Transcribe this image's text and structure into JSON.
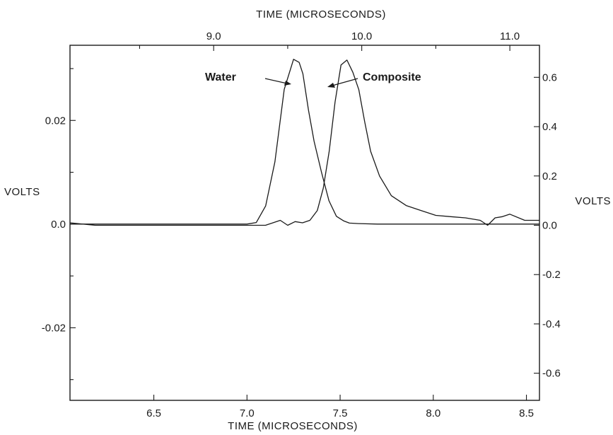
{
  "chart_data": {
    "type": "line",
    "top_xlabel": "TIME (MICROSECONDS)",
    "bottom_xlabel": "TIME (MICROSECONDS)",
    "left_ylabel": "VOLTS",
    "right_ylabel": "VOLTS",
    "bottom_x_axis": {
      "range": [
        6.05,
        8.57
      ],
      "ticks": [
        6.5,
        7.0,
        7.5,
        8.0,
        8.5
      ],
      "tick_labels": [
        "6.5",
        "7.0",
        "7.5",
        "8.0",
        "8.5"
      ]
    },
    "top_x_axis": {
      "range": [
        8.03,
        11.2
      ],
      "ticks": [
        9.0,
        10.0,
        11.0
      ],
      "tick_labels": [
        "9.0",
        "10.0",
        "11.0"
      ],
      "minor_ticks": [
        8.5,
        9.5,
        10.5
      ]
    },
    "left_y_axis": {
      "range": [
        -0.034,
        0.0345
      ],
      "ticks": [
        0.02,
        0.0,
        -0.02
      ],
      "tick_labels": [
        "0.02",
        "0.0",
        "-0.02"
      ],
      "minor_ticks": [
        0.03,
        0.01,
        -0.01,
        -0.03
      ]
    },
    "right_y_axis": {
      "range": [
        -0.71,
        0.73
      ],
      "ticks": [
        0.6,
        0.4,
        0.2,
        0.0,
        -0.2,
        -0.4,
        -0.6
      ],
      "tick_labels": [
        "0.6",
        "0.4",
        "0.2",
        "0.0",
        "-0.2",
        "-0.4",
        "-0.6"
      ]
    },
    "grid": false,
    "series": [
      {
        "name": "Water",
        "axis": "bottom-left",
        "x": [
          6.05,
          6.1,
          6.2,
          6.3,
          6.4,
          6.5,
          6.6,
          6.7,
          6.8,
          6.85,
          6.9,
          6.95,
          7.0,
          7.05,
          7.1,
          7.15,
          7.2,
          7.25,
          7.28,
          7.3,
          7.33,
          7.36,
          7.4,
          7.44,
          7.48,
          7.52,
          7.55,
          7.6,
          7.7,
          7.8,
          7.9,
          8.0,
          8.1,
          8.2,
          8.3,
          8.4,
          8.5,
          8.57
        ],
        "y": [
          0.0,
          0.0,
          0.0,
          0.0,
          0.0,
          0.0,
          0.0,
          0.0,
          0.0,
          0.0,
          0.0,
          0.0,
          0.0,
          0.0003,
          0.0035,
          0.012,
          0.026,
          0.0318,
          0.0312,
          0.029,
          0.022,
          0.016,
          0.01,
          0.0045,
          0.0015,
          0.0006,
          0.0002,
          0.0001,
          0.0,
          0.0,
          0.0,
          0.0,
          0.0,
          0.0,
          0.0,
          0.0,
          0.0,
          0.0
        ]
      },
      {
        "name": "Composite",
        "axis": "top-right",
        "x": [
          8.03,
          8.2,
          8.5,
          8.8,
          9.0,
          9.2,
          9.35,
          9.45,
          9.5,
          9.55,
          9.6,
          9.65,
          9.7,
          9.74,
          9.78,
          9.82,
          9.86,
          9.9,
          9.94,
          9.98,
          10.02,
          10.06,
          10.12,
          10.2,
          10.3,
          10.4,
          10.5,
          10.6,
          10.7,
          10.8,
          10.85,
          10.9,
          10.95,
          11.0,
          11.1,
          11.2
        ],
        "y": [
          0.01,
          0.0,
          0.0,
          0.0,
          0.0,
          0.0,
          0.0,
          0.02,
          0.0,
          0.015,
          0.01,
          0.02,
          0.06,
          0.15,
          0.3,
          0.5,
          0.65,
          0.67,
          0.62,
          0.55,
          0.42,
          0.3,
          0.2,
          0.12,
          0.08,
          0.06,
          0.04,
          0.035,
          0.03,
          0.02,
          0.0,
          0.03,
          0.035,
          0.045,
          0.02,
          0.02
        ]
      }
    ],
    "annotations": [
      {
        "text": "Water"
      },
      {
        "text": "Composite"
      }
    ]
  }
}
